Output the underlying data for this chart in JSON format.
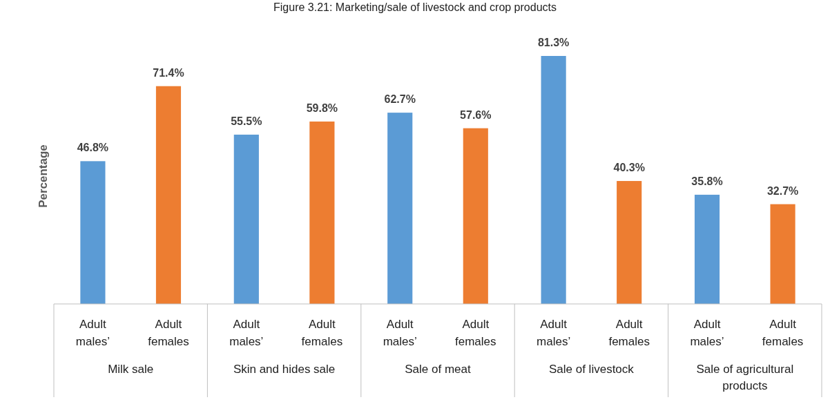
{
  "chart_data": {
    "type": "bar",
    "title": "Figure 3.21: Marketing/sale of livestock and crop products",
    "ylabel": "Percentage",
    "categories": [
      "Milk sale",
      "Skin and hides sale",
      "Sale of meat",
      "Sale of livestock",
      "Sale of agricultural products"
    ],
    "series": [
      {
        "name": "Adult males’",
        "color": "#5b9bd5",
        "values": [
          46.8,
          55.5,
          62.7,
          81.3,
          35.8
        ],
        "value_labels": [
          "46.8%",
          "55.5%",
          "62.7%",
          "81.3%",
          "35.8%"
        ]
      },
      {
        "name": "Adult females",
        "color": "#ed7d31",
        "values": [
          71.4,
          59.8,
          57.6,
          40.3,
          32.7
        ],
        "value_labels": [
          "71.4%",
          "59.8%",
          "57.6%",
          "40.3%",
          "32.7%"
        ]
      }
    ]
  }
}
